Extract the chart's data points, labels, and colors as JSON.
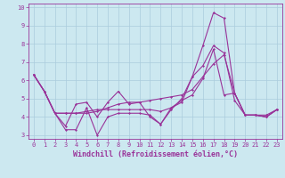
{
  "title": "",
  "xlabel": "Windchill (Refroidissement éolien,°C)",
  "ylabel": "",
  "background_color": "#cce8f0",
  "grid_color": "#aaccdd",
  "line_color": "#993399",
  "xlim": [
    -0.5,
    23.5
  ],
  "ylim": [
    2.8,
    10.2
  ],
  "yticks": [
    3,
    4,
    5,
    6,
    7,
    8,
    9,
    10
  ],
  "xticks": [
    0,
    1,
    2,
    3,
    4,
    5,
    6,
    7,
    8,
    9,
    10,
    11,
    12,
    13,
    14,
    15,
    16,
    17,
    18,
    19,
    20,
    21,
    22,
    23
  ],
  "line1_x": [
    0,
    1,
    2,
    3,
    4,
    5,
    6,
    7,
    8,
    9,
    10,
    11,
    12,
    13,
    14,
    15,
    16,
    17,
    18,
    19,
    20,
    21,
    22,
    23
  ],
  "line1_y": [
    6.3,
    5.4,
    4.2,
    3.5,
    4.7,
    4.8,
    4.0,
    4.8,
    5.4,
    4.7,
    4.8,
    4.0,
    3.6,
    4.4,
    5.0,
    6.2,
    7.9,
    9.7,
    9.4,
    5.3,
    4.1,
    4.1,
    4.0,
    4.4
  ],
  "line2_x": [
    0,
    1,
    2,
    3,
    4,
    5,
    6,
    7,
    8,
    9,
    10,
    11,
    12,
    13,
    14,
    15,
    16,
    17,
    18,
    19,
    20,
    21,
    22,
    23
  ],
  "line2_y": [
    6.3,
    5.4,
    4.2,
    3.3,
    3.3,
    4.5,
    3.0,
    4.0,
    4.2,
    4.2,
    4.2,
    4.1,
    3.6,
    4.5,
    4.8,
    6.2,
    6.8,
    7.9,
    7.5,
    4.9,
    4.1,
    4.1,
    4.0,
    4.4
  ],
  "line3_x": [
    0,
    1,
    2,
    3,
    4,
    5,
    6,
    7,
    8,
    9,
    10,
    11,
    12,
    13,
    14,
    15,
    16,
    17,
    18,
    19,
    20,
    21,
    22,
    23
  ],
  "line3_y": [
    6.3,
    5.4,
    4.2,
    4.2,
    4.2,
    4.2,
    4.3,
    4.5,
    4.7,
    4.8,
    4.8,
    4.9,
    5.0,
    5.1,
    5.2,
    5.5,
    6.2,
    6.9,
    7.4,
    5.3,
    4.1,
    4.1,
    4.1,
    4.4
  ],
  "line4_x": [
    0,
    1,
    2,
    3,
    4,
    5,
    6,
    7,
    8,
    9,
    10,
    11,
    12,
    13,
    14,
    15,
    16,
    17,
    18,
    19,
    20,
    21,
    22,
    23
  ],
  "line4_y": [
    6.3,
    5.4,
    4.2,
    4.2,
    4.2,
    4.3,
    4.4,
    4.4,
    4.4,
    4.4,
    4.4,
    4.4,
    4.3,
    4.5,
    4.9,
    5.2,
    6.1,
    7.7,
    5.2,
    5.3,
    4.1,
    4.1,
    4.0,
    4.4
  ],
  "marker": "D",
  "markersize": 1.5,
  "linewidth": 0.8,
  "tick_fontsize": 5,
  "label_fontsize": 6
}
